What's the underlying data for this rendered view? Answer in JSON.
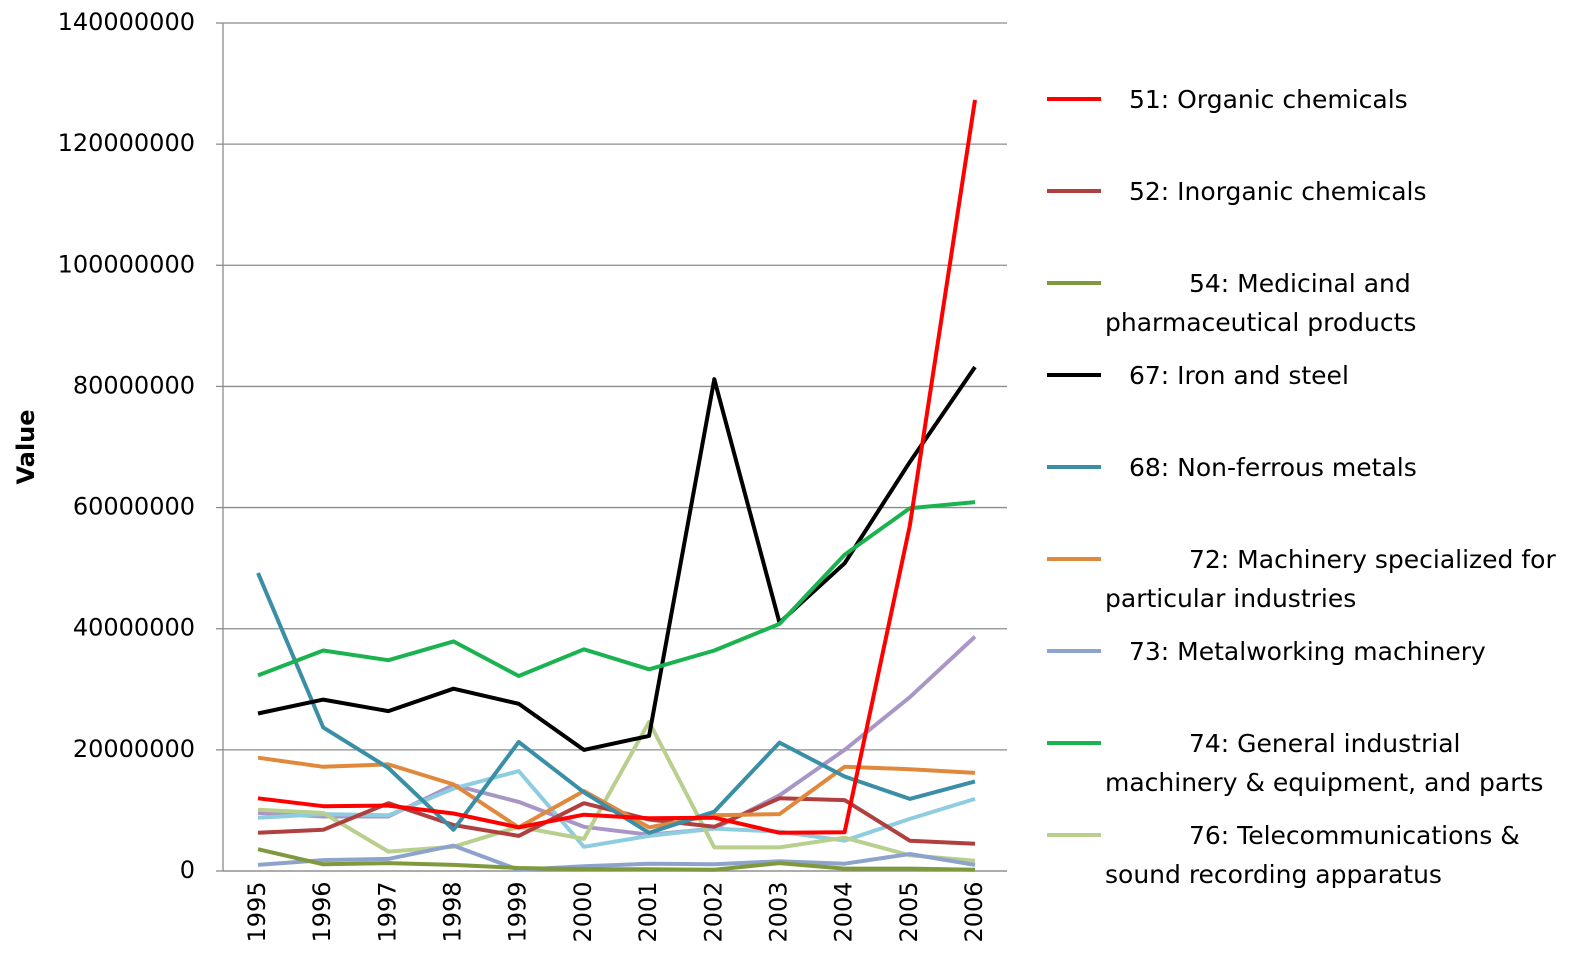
{
  "chart_data": {
    "type": "line",
    "y_label": "Value",
    "categories": [
      "1995",
      "1996",
      "1997",
      "1998",
      "1999",
      "2000",
      "2001",
      "2002",
      "2003",
      "2004",
      "2005",
      "2006"
    ],
    "ylim": [
      0,
      140000000
    ],
    "yticks": [
      0,
      20000000,
      40000000,
      60000000,
      80000000,
      100000000,
      120000000,
      140000000
    ],
    "grid": true,
    "series": [
      {
        "name": "51: Organic chemicals",
        "color": "#ff0000",
        "values": [
          12000000,
          10700000,
          10800000,
          9500000,
          7200000,
          9300000,
          8700000,
          8800000,
          6300000,
          6400000,
          57000000,
          127300000
        ]
      },
      {
        "name": "52: Inorganic chemicals",
        "color": "#b04040",
        "values": [
          6300000,
          6800000,
          11200000,
          7600000,
          5800000,
          11200000,
          8500000,
          7300000,
          12000000,
          11700000,
          5000000,
          4500000
        ]
      },
      {
        "name": "54: Medicinal and pharmaceutical products",
        "color": "#7f9a3c",
        "values": [
          3600000,
          1100000,
          1300000,
          1000000,
          500000,
          300000,
          300000,
          200000,
          1300000,
          400000,
          400000,
          200000
        ]
      },
      {
        "name": "67: Iron and steel",
        "color": "#000000",
        "values": [
          26000000,
          28300000,
          26400000,
          30100000,
          27600000,
          20000000,
          22300000,
          81200000,
          41000000,
          50800000,
          67500000,
          83200000
        ]
      },
      {
        "name": "68: Non-ferrous metals",
        "color": "#3a8fa6",
        "values": [
          49200000,
          23700000,
          17000000,
          6800000,
          21300000,
          13000000,
          6300000,
          9800000,
          21200000,
          15600000,
          11900000,
          14800000
        ]
      },
      {
        "name": "72: Machinery specialized for particular industries",
        "color": "#e0893c",
        "values": [
          18700000,
          17200000,
          17600000,
          14300000,
          7200000,
          13200000,
          7200000,
          9200000,
          9400000,
          17200000,
          16800000,
          16200000
        ]
      },
      {
        "name": "73: Metalworking machinery",
        "color": "#8ea3cc",
        "values": [
          1000000,
          1800000,
          2000000,
          4200000,
          200000,
          800000,
          1200000,
          1100000,
          1600000,
          1200000,
          2800000,
          1000000
        ]
      },
      {
        "name": "74: General industrial machinery & equipment, and parts",
        "color": "#1ab350",
        "values": [
          32300000,
          36400000,
          34800000,
          37900000,
          32200000,
          36600000,
          33300000,
          36400000,
          40800000,
          52200000,
          59900000,
          60900000
        ]
      },
      {
        "name": "76: Telecommunications & sound recording apparatus",
        "color": "#b8cf8e",
        "values": [
          10100000,
          9600000,
          3200000,
          4000000,
          7300000,
          5300000,
          24600000,
          3900000,
          3900000,
          5500000,
          2600000,
          1700000
        ]
      },
      {
        "color": "#8ecde0",
        "values": [
          8800000,
          9400000,
          9200000,
          13600000,
          16500000,
          4000000,
          5800000,
          7000000,
          6500000,
          5000000,
          8600000,
          11900000
        ]
      },
      {
        "color": "#a897c6",
        "values": [
          9600000,
          9000000,
          9000000,
          14200000,
          11400000,
          7300000,
          6000000,
          7000000,
          12500000,
          20000000,
          28700000,
          38700000
        ]
      }
    ]
  }
}
